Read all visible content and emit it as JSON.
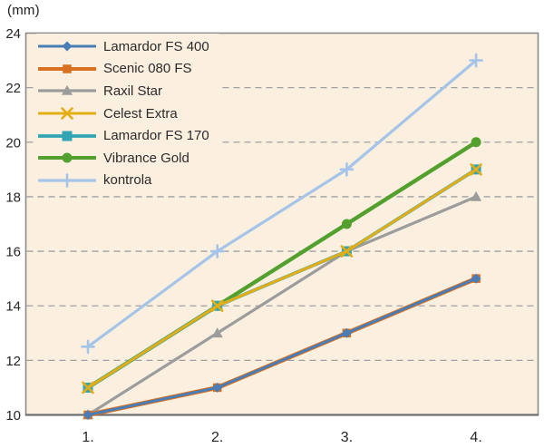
{
  "chart_data": {
    "type": "line",
    "title": "",
    "ylabel": "(mm)",
    "xlabel": "",
    "x_tick_labels": [
      "1.",
      "2.",
      "3.",
      "4."
    ],
    "y_ticks": [
      10,
      12,
      14,
      16,
      18,
      20,
      22,
      24
    ],
    "ylim": [
      10,
      24
    ],
    "grid": "horizontal-dashed",
    "legend_position": "top-left-inside",
    "colors": {
      "plot_background": "#fbf0e0",
      "grid_line": "#a0a0a0",
      "plot_border": "#8a8a8a",
      "axis_text": "#262626"
    },
    "series": [
      {
        "name": "Lamardor FS 400",
        "values": [
          10,
          11,
          13,
          15
        ],
        "color": "#4a7cb5",
        "marker": "diamond"
      },
      {
        "name": "Scenic 080 FS",
        "values": [
          10,
          11,
          13,
          15
        ],
        "color": "#d8701f",
        "marker": "square"
      },
      {
        "name": "Raxil Star",
        "values": [
          10,
          13,
          16,
          18
        ],
        "color": "#9c9c9c",
        "marker": "triangle"
      },
      {
        "name": "Celest Extra",
        "values": [
          11,
          14,
          16,
          19
        ],
        "color": "#e3ad15",
        "marker": "x"
      },
      {
        "name": "Lamardor FS 170",
        "values": [
          11,
          14,
          16,
          19
        ],
        "color": "#31a5b3",
        "marker": "square"
      },
      {
        "name": "Vibrance Gold",
        "values": [
          11,
          14,
          17,
          20
        ],
        "color": "#54a02f",
        "marker": "circle"
      },
      {
        "name": "kontrola",
        "values": [
          12.5,
          16,
          19,
          23
        ],
        "color": "#a6c4e8",
        "marker": "plus"
      }
    ]
  }
}
